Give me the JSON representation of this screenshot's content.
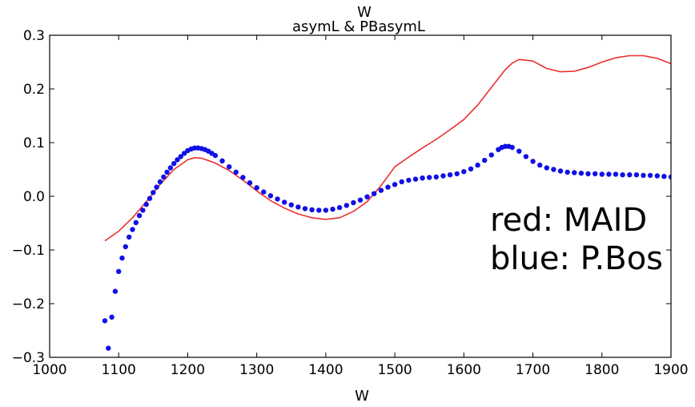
{
  "chart_data": {
    "type": "line",
    "title": "asymL & PBasymL",
    "top_axis_label": "W",
    "xlabel": "W",
    "ylabel": "",
    "xlim": [
      1000,
      1900
    ],
    "ylim": [
      -0.3,
      0.3
    ],
    "x_ticks": [
      "1000",
      "1100",
      "1200",
      "1300",
      "1400",
      "1500",
      "1600",
      "1700",
      "1800",
      "1900"
    ],
    "y_ticks": [
      "0.3",
      "0.2",
      "0.1",
      "0.0",
      "−0.1",
      "−0.2",
      "−0.3"
    ],
    "grid": false,
    "annotations": [
      "red: MAID",
      "blue: P.Bos"
    ],
    "series": [
      {
        "name": "MAID",
        "style": "line",
        "color": "#e8302e",
        "x": [
          1080,
          1100,
          1120,
          1140,
          1160,
          1180,
          1200,
          1210,
          1220,
          1240,
          1260,
          1280,
          1300,
          1320,
          1340,
          1360,
          1380,
          1400,
          1420,
          1440,
          1460,
          1480,
          1500,
          1520,
          1540,
          1560,
          1580,
          1600,
          1620,
          1640,
          1660,
          1670,
          1680,
          1700,
          1720,
          1740,
          1760,
          1780,
          1800,
          1820,
          1840,
          1860,
          1880,
          1900
        ],
        "y": [
          -0.083,
          -0.065,
          -0.04,
          -0.01,
          0.022,
          0.05,
          0.068,
          0.072,
          0.071,
          0.062,
          0.048,
          0.03,
          0.01,
          -0.008,
          -0.022,
          -0.033,
          -0.04,
          -0.043,
          -0.04,
          -0.028,
          -0.01,
          0.02,
          0.055,
          0.073,
          0.09,
          0.106,
          0.124,
          0.143,
          0.17,
          0.203,
          0.236,
          0.248,
          0.255,
          0.252,
          0.238,
          0.232,
          0.233,
          0.24,
          0.25,
          0.258,
          0.262,
          0.262,
          0.257,
          0.247
        ]
      },
      {
        "name": "P.Bos",
        "style": "points",
        "color": "#1010e8",
        "x": [
          1080,
          1085,
          1090,
          1095,
          1100,
          1105,
          1110,
          1115,
          1120,
          1125,
          1130,
          1135,
          1140,
          1145,
          1150,
          1155,
          1160,
          1165,
          1170,
          1175,
          1180,
          1185,
          1190,
          1195,
          1200,
          1205,
          1210,
          1215,
          1220,
          1225,
          1230,
          1235,
          1240,
          1250,
          1260,
          1270,
          1280,
          1290,
          1300,
          1310,
          1320,
          1330,
          1340,
          1350,
          1360,
          1370,
          1380,
          1390,
          1400,
          1410,
          1420,
          1430,
          1440,
          1450,
          1460,
          1470,
          1480,
          1490,
          1500,
          1510,
          1520,
          1530,
          1540,
          1550,
          1560,
          1570,
          1580,
          1590,
          1600,
          1610,
          1620,
          1630,
          1640,
          1650,
          1655,
          1660,
          1665,
          1670,
          1680,
          1690,
          1700,
          1710,
          1720,
          1730,
          1740,
          1750,
          1760,
          1770,
          1780,
          1790,
          1800,
          1810,
          1820,
          1830,
          1840,
          1850,
          1860,
          1870,
          1880,
          1890,
          1900
        ],
        "y": [
          -0.232,
          -0.283,
          -0.225,
          -0.177,
          -0.14,
          -0.115,
          -0.094,
          -0.076,
          -0.062,
          -0.049,
          -0.036,
          -0.026,
          -0.015,
          -0.004,
          0.007,
          0.017,
          0.027,
          0.036,
          0.045,
          0.053,
          0.061,
          0.068,
          0.074,
          0.08,
          0.085,
          0.088,
          0.09,
          0.09,
          0.089,
          0.087,
          0.084,
          0.08,
          0.076,
          0.066,
          0.055,
          0.045,
          0.035,
          0.025,
          0.016,
          0.008,
          0.001,
          -0.005,
          -0.011,
          -0.016,
          -0.02,
          -0.023,
          -0.025,
          -0.026,
          -0.026,
          -0.024,
          -0.021,
          -0.017,
          -0.012,
          -0.007,
          -0.001,
          0.005,
          0.011,
          0.017,
          0.022,
          0.027,
          0.03,
          0.032,
          0.034,
          0.035,
          0.036,
          0.038,
          0.04,
          0.042,
          0.046,
          0.051,
          0.058,
          0.067,
          0.077,
          0.087,
          0.091,
          0.093,
          0.093,
          0.091,
          0.084,
          0.074,
          0.065,
          0.058,
          0.053,
          0.05,
          0.047,
          0.045,
          0.044,
          0.043,
          0.042,
          0.042,
          0.041,
          0.041,
          0.041,
          0.04,
          0.04,
          0.04,
          0.039,
          0.039,
          0.038,
          0.037,
          0.036
        ]
      }
    ]
  }
}
